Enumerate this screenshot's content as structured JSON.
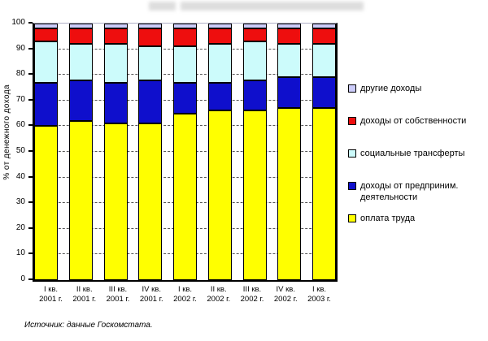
{
  "chart_data": {
    "type": "bar",
    "stacked": true,
    "title": "",
    "title_redacted": true,
    "ylabel": "% от денежного дохода",
    "ylim": [
      0,
      100
    ],
    "yticks": [
      0,
      10,
      20,
      30,
      40,
      50,
      60,
      70,
      80,
      90,
      100
    ],
    "grid": "horizontal-dashed",
    "legend_position": "right",
    "categories": [
      {
        "quarter": "I кв.",
        "year": "2001 г."
      },
      {
        "quarter": "II кв.",
        "year": "2001 г."
      },
      {
        "quarter": "III кв.",
        "year": "2001 г."
      },
      {
        "quarter": "IV кв.",
        "year": "2001 г."
      },
      {
        "quarter": "I кв.",
        "year": "2002 г."
      },
      {
        "quarter": "II кв.",
        "year": "2002 г."
      },
      {
        "quarter": "III кв.",
        "year": "2002 г."
      },
      {
        "quarter": "IV кв.",
        "year": "2002 г."
      },
      {
        "quarter": "I кв.",
        "year": "2003 г."
      }
    ],
    "series": [
      {
        "name": "оплата труда",
        "color": "#FFFF00",
        "values": [
          60,
          62,
          61,
          61,
          65,
          66,
          66,
          67,
          67
        ]
      },
      {
        "name": "доходы от предприним. деятельности",
        "color": "#0F0FCC",
        "values": [
          17,
          16,
          16,
          17,
          12,
          11,
          12,
          12,
          12
        ]
      },
      {
        "name": "социальные трансферты",
        "color": "#CCFBFB",
        "values": [
          16,
          14,
          15,
          13,
          14,
          15,
          15,
          13,
          13
        ]
      },
      {
        "name": "доходы от собственности",
        "color": "#EE0E0E",
        "values": [
          5,
          6,
          6,
          7,
          7,
          6,
          5,
          6,
          6
        ]
      },
      {
        "name": "другие доходы",
        "color": "#CCCCFA",
        "values": [
          2,
          2,
          2,
          2,
          2,
          2,
          2,
          2,
          2
        ]
      }
    ]
  },
  "legend": {
    "items": [
      {
        "label": "другие доходы",
        "color": "#CCCCFA"
      },
      {
        "label": "доходы от собственности",
        "color": "#EE0E0E"
      },
      {
        "label": "социальные трансферты",
        "color": "#CCFBFB"
      },
      {
        "label": "доходы от предприним. деятельности",
        "color": "#0F0FCC"
      },
      {
        "label": "оплата труда",
        "color": "#FFFF00"
      }
    ]
  },
  "source_note": "Источник: данные Госкомстата."
}
